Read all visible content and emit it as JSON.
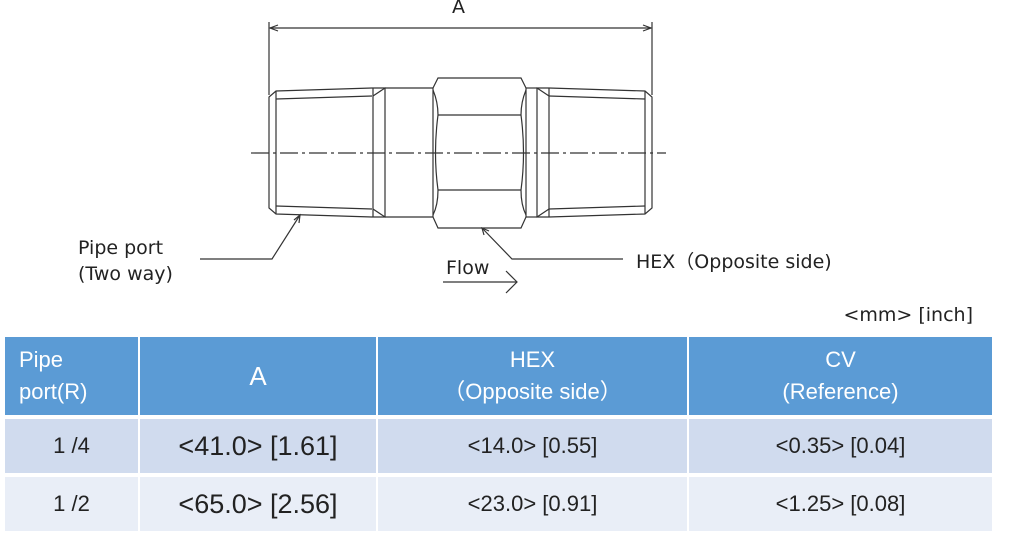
{
  "drawing": {
    "dimension_label": "A",
    "pipe_port_label_line1": "Pipe port",
    "pipe_port_label_line2": "(Two way)",
    "flow_label": "Flow",
    "hex_label": "HEX（Opposite side)"
  },
  "units": "<mm> [inch]",
  "table": {
    "headers": [
      {
        "line1": "Pipe",
        "line2": "port(R)"
      },
      {
        "line1": "A",
        "line2": ""
      },
      {
        "line1": "HEX",
        "line2": "（Opposite side）"
      },
      {
        "line1": "CV",
        "line2": "(Reference)"
      }
    ],
    "rows": [
      [
        "1 /4",
        "<41.0> [1.61]",
        "<14.0> [0.55]",
        "<0.35> [0.04]"
      ],
      [
        "1 /2",
        "<65.0> [2.56]",
        "<23.0> [0.91]",
        "<1.25> [0.08]"
      ]
    ],
    "colors": {
      "header": "#5b9bd5",
      "row_odd": "#d0dbee",
      "row_even": "#e9eef7"
    }
  }
}
